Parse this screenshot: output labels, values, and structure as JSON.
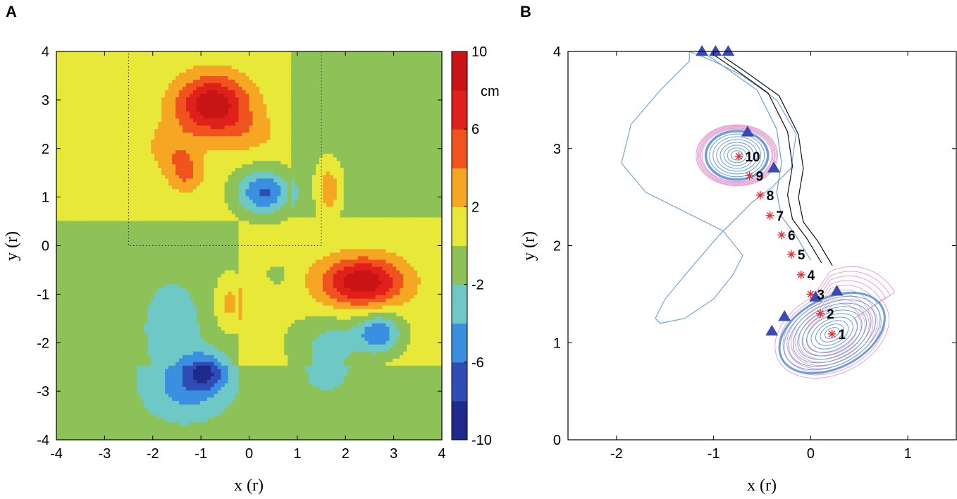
{
  "chart_data": [
    {
      "panel": "A",
      "type": "heatmap",
      "subtitle": "filled contour map",
      "xlabel": "x (r)",
      "ylabel": "y (r)",
      "xlim": [
        -4,
        4
      ],
      "ylim": [
        -4,
        4
      ],
      "xticks": [
        "-4",
        "-3",
        "-2",
        "-1",
        "0",
        "1",
        "2",
        "3",
        "4"
      ],
      "yticks": [
        "4",
        "3",
        "2",
        "1",
        "0",
        "-1",
        "-2",
        "-3",
        "-4"
      ],
      "colorbar": {
        "unit": "cm",
        "ticks": [
          "10",
          "6",
          "2",
          "-2",
          "-6",
          "-10"
        ],
        "levels": [
          -10,
          -8,
          -6,
          -4,
          -2,
          0,
          2,
          4,
          6,
          8,
          10
        ],
        "colors": [
          "#1f2a8c",
          "#2f4db5",
          "#3a8fe0",
          "#6ec8c6",
          "#8cc257",
          "#e8e839",
          "#f5a623",
          "#f0531e",
          "#e0201b",
          "#c81414"
        ]
      },
      "dotted_box": {
        "x": [
          -2.5,
          1.5
        ],
        "y": [
          0,
          4
        ]
      },
      "extrema": [
        {
          "x": -0.75,
          "y": 2.9,
          "value": 9
        },
        {
          "x": 2.35,
          "y": -0.75,
          "value": 9
        },
        {
          "x": 0.3,
          "y": 1.1,
          "value": -7
        },
        {
          "x": 2.7,
          "y": -1.8,
          "value": -6
        },
        {
          "x": -0.9,
          "y": -2.6,
          "value": -6
        }
      ]
    },
    {
      "panel": "B",
      "type": "scatter",
      "subtitle": "trajectories",
      "xlabel": "x (r)",
      "ylabel": "y (r)",
      "xlim": [
        -2.5,
        1.5
      ],
      "ylim": [
        0,
        4
      ],
      "xticks": [
        "-2",
        "-1",
        "0",
        "1"
      ],
      "yticks": [
        "4",
        "3",
        "2",
        "1",
        "0"
      ],
      "points": [
        {
          "label": "1",
          "x": 0.22,
          "y": 1.09
        },
        {
          "label": "2",
          "x": 0.1,
          "y": 1.3
        },
        {
          "label": "3",
          "x": 0.0,
          "y": 1.5
        },
        {
          "label": "4",
          "x": -0.1,
          "y": 1.7
        },
        {
          "label": "5",
          "x": -0.2,
          "y": 1.91
        },
        {
          "label": "6",
          "x": -0.3,
          "y": 2.11
        },
        {
          "label": "7",
          "x": -0.42,
          "y": 2.31
        },
        {
          "label": "8",
          "x": -0.52,
          "y": 2.52
        },
        {
          "label": "9",
          "x": -0.63,
          "y": 2.72
        },
        {
          "label": "10",
          "x": -0.74,
          "y": 2.92
        }
      ],
      "triangles": [
        {
          "x": -1.12,
          "y": 4.0
        },
        {
          "x": -0.98,
          "y": 4.0
        },
        {
          "x": -0.85,
          "y": 4.0
        },
        {
          "x": -0.65,
          "y": 3.17
        },
        {
          "x": -0.38,
          "y": 2.8
        },
        {
          "x": 0.27,
          "y": 1.53
        },
        {
          "x": 0.05,
          "y": 1.47
        },
        {
          "x": -0.27,
          "y": 1.27
        },
        {
          "x": -0.4,
          "y": 1.12
        }
      ],
      "colors": {
        "upper_vortex": "#6a9fd9",
        "halo": "#e49bd0",
        "streak": "#111111",
        "marker": "#e33030",
        "triangle": "#3b49b5"
      }
    }
  ]
}
